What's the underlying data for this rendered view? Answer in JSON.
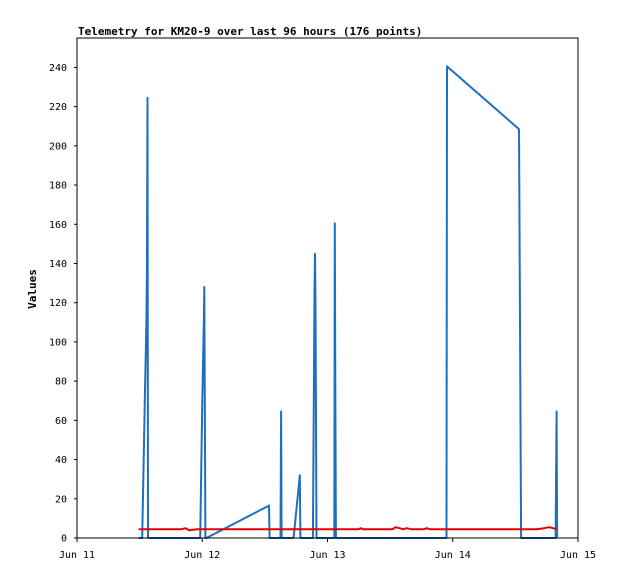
{
  "chart_data": {
    "type": "line",
    "title": "Telemetry for KM20-9 over last 96 hours (176 points)",
    "ylabel": "Values",
    "xlabel": "",
    "ylim": [
      0,
      255
    ],
    "xlim": [
      0,
      96
    ],
    "yticks": [
      0,
      20,
      40,
      60,
      80,
      100,
      120,
      140,
      160,
      180,
      200,
      220,
      240
    ],
    "xticks": [
      {
        "x": 0,
        "label": "Jun 11"
      },
      {
        "x": 24,
        "label": "Jun 12"
      },
      {
        "x": 48,
        "label": "Jun 13"
      },
      {
        "x": 72,
        "label": "Jun 14"
      },
      {
        "x": 96,
        "label": "Jun 15"
      }
    ],
    "grid": false,
    "series": [
      {
        "color": "#1f6fbf",
        "points": [
          [
            11.8,
            0
          ],
          [
            12.5,
            0
          ],
          [
            13.0,
            70
          ],
          [
            13.3,
            110
          ],
          [
            13.4,
            135
          ],
          [
            13.5,
            224.5
          ],
          [
            13.6,
            0
          ],
          [
            23.6,
            0
          ],
          [
            24.0,
            70
          ],
          [
            24.3,
            110
          ],
          [
            24.4,
            128
          ],
          [
            24.6,
            0
          ],
          [
            24.8,
            0
          ],
          [
            36.8,
            16.5
          ],
          [
            36.9,
            0
          ],
          [
            39.0,
            0
          ],
          [
            39.1,
            64.5
          ],
          [
            39.2,
            0
          ],
          [
            41.5,
            0
          ],
          [
            42.7,
            32
          ],
          [
            42.8,
            0
          ],
          [
            45.2,
            0
          ],
          [
            45.5,
            125
          ],
          [
            45.6,
            145
          ],
          [
            45.7,
            120
          ],
          [
            45.9,
            0
          ],
          [
            49.3,
            0
          ],
          [
            49.4,
            160.5
          ],
          [
            49.5,
            80
          ],
          [
            49.6,
            0
          ],
          [
            70.8,
            0
          ],
          [
            70.9,
            240.5
          ],
          [
            84.7,
            208.5
          ],
          [
            84.8,
            160
          ],
          [
            85.0,
            50
          ],
          [
            85.1,
            0
          ],
          [
            91.7,
            0
          ],
          [
            91.8,
            32
          ],
          [
            91.9,
            64.5
          ],
          [
            92.0,
            0
          ]
        ]
      },
      {
        "color": "#e00000",
        "points": [
          [
            11.8,
            4.5
          ],
          [
            14.0,
            4.5
          ],
          [
            20.0,
            4.5
          ],
          [
            20.8,
            5.0
          ],
          [
            21.5,
            4.0
          ],
          [
            23.0,
            4.5
          ],
          [
            30.0,
            4.5
          ],
          [
            40.0,
            4.5
          ],
          [
            50.0,
            4.5
          ],
          [
            54.0,
            4.5
          ],
          [
            54.4,
            5.0
          ],
          [
            54.8,
            4.5
          ],
          [
            60.5,
            4.5
          ],
          [
            61.0,
            5.5
          ],
          [
            61.8,
            5.0
          ],
          [
            62.5,
            4.5
          ],
          [
            63.2,
            5.0
          ],
          [
            64.0,
            4.5
          ],
          [
            66.5,
            4.5
          ],
          [
            67.0,
            5.0
          ],
          [
            67.6,
            4.5
          ],
          [
            75.0,
            4.5
          ],
          [
            85.0,
            4.5
          ],
          [
            88.0,
            4.5
          ],
          [
            89.5,
            5.0
          ],
          [
            90.5,
            5.5
          ],
          [
            91.2,
            5.0
          ],
          [
            91.9,
            4.5
          ]
        ]
      },
      {
        "color": "#000000",
        "points": [
          [
            11.8,
            0
          ],
          [
            92.0,
            0
          ]
        ]
      }
    ]
  }
}
